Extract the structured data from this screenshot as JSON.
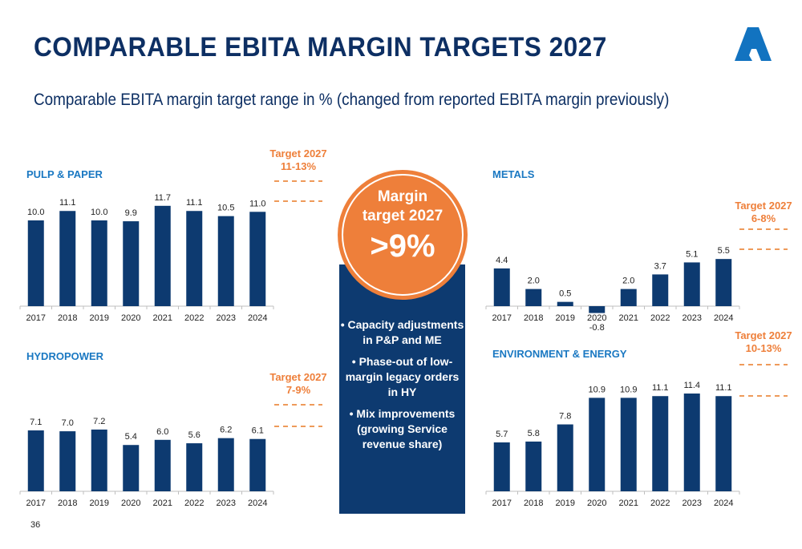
{
  "header": {
    "title": "COMPARABLE EBITA MARGIN TARGETS 2027",
    "subtitle": "Comparable EBITA margin target range in % (changed from reported EBITA margin previously)",
    "logo": "andritz-a-logo-icon"
  },
  "page_number": "36",
  "colors": {
    "bar": "#0d3a70",
    "title": "#0d2f63",
    "chart_title": "#1a78c2",
    "accent_orange": "#ee7f3a"
  },
  "center_panel": {
    "circle_line1": "Margin",
    "circle_line2": "target 2027",
    "circle_value": ">9%",
    "bullets": [
      "Capacity adjustments in P&P and ME",
      "Phase-out of low-margin legacy orders in HY",
      "Mix improvements (growing Service revenue share)"
    ]
  },
  "chart_data": [
    {
      "type": "bar",
      "title": "PULP & PAPER",
      "categories": [
        "2017",
        "2018",
        "2019",
        "2020",
        "2021",
        "2022",
        "2023",
        "2024"
      ],
      "values": [
        10.0,
        11.1,
        10.0,
        9.9,
        11.7,
        11.1,
        10.5,
        11.0
      ],
      "labels": [
        "10.0",
        "11.1",
        "10.0",
        "9.9",
        "11.7",
        "11.1",
        "10.5",
        "11.0"
      ],
      "target_line1": "Target 2027",
      "target_line2": "11-13%",
      "target_range": [
        11,
        13
      ],
      "xlabel": "",
      "ylabel": "",
      "grid": false
    },
    {
      "type": "bar",
      "title": "HYDROPOWER",
      "categories": [
        "2017",
        "2018",
        "2019",
        "2020",
        "2021",
        "2022",
        "2023",
        "2024"
      ],
      "values": [
        7.1,
        7.0,
        7.2,
        5.4,
        6.0,
        5.6,
        6.2,
        6.1
      ],
      "labels": [
        "7.1",
        "7.0",
        "7.2",
        "5.4",
        "6.0",
        "5.6",
        "6.2",
        "6.1"
      ],
      "target_line1": "Target 2027",
      "target_line2": "7-9%",
      "target_range": [
        7,
        9
      ],
      "xlabel": "",
      "ylabel": "",
      "grid": false
    },
    {
      "type": "bar",
      "title": "METALS",
      "categories": [
        "2017",
        "2018",
        "2019",
        "2020",
        "2021",
        "2022",
        "2023",
        "2024"
      ],
      "values": [
        4.4,
        2.0,
        0.5,
        -0.8,
        2.0,
        3.7,
        5.1,
        5.5
      ],
      "labels": [
        "4.4",
        "2.0",
        "0.5",
        "-0.8",
        "2.0",
        "3.7",
        "5.1",
        "5.5"
      ],
      "target_line1": "Target 2027",
      "target_line2": "6-8%",
      "target_range": [
        6,
        8
      ],
      "xlabel": "",
      "ylabel": "",
      "grid": false
    },
    {
      "type": "bar",
      "title": "ENVIRONMENT & ENERGY",
      "categories": [
        "2017",
        "2018",
        "2019",
        "2020",
        "2021",
        "2022",
        "2023",
        "2024"
      ],
      "values": [
        5.7,
        5.8,
        7.8,
        10.9,
        10.9,
        11.1,
        11.4,
        11.1
      ],
      "labels": [
        "5.7",
        "5.8",
        "7.8",
        "10.9",
        "10.9",
        "11.1",
        "11.4",
        "11.1"
      ],
      "target_line1": "Target 2027",
      "target_line2": "10-13%",
      "target_range": [
        10,
        13
      ],
      "xlabel": "",
      "ylabel": "",
      "grid": false
    }
  ]
}
